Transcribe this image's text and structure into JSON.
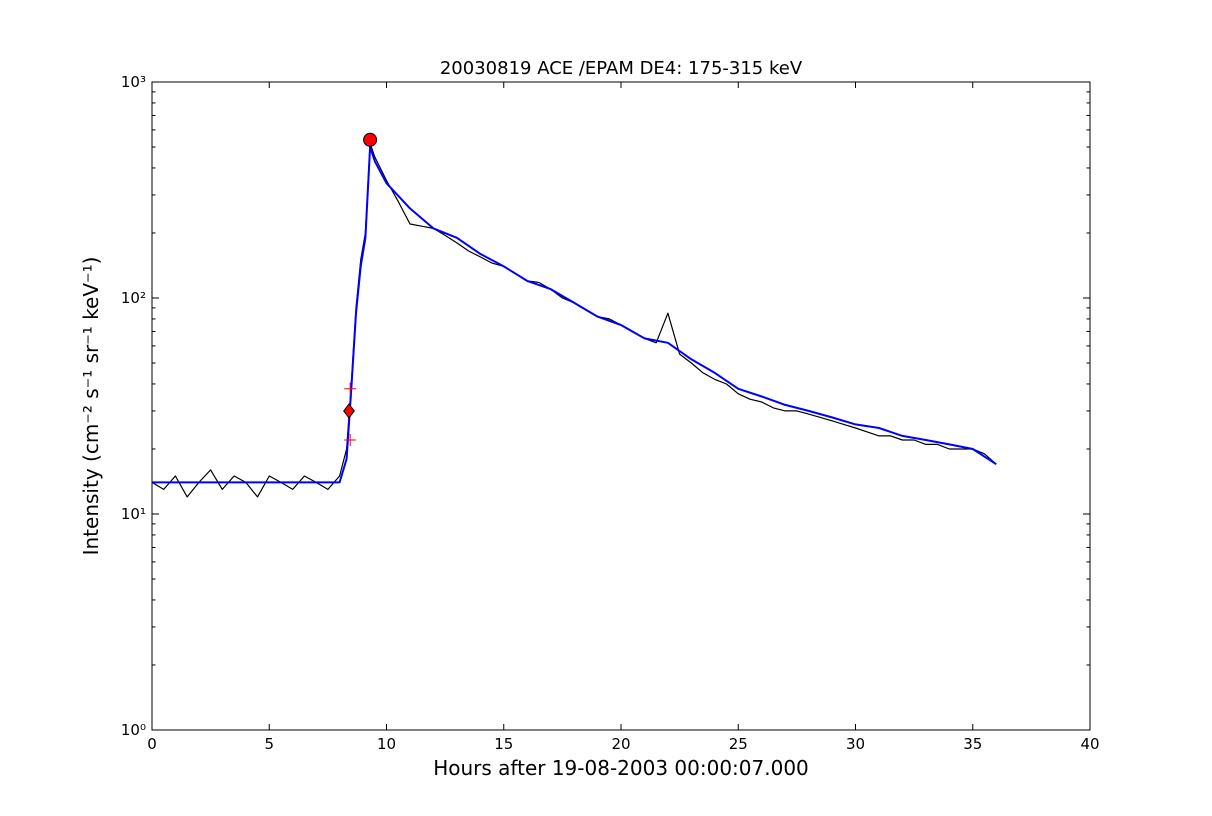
{
  "chart_data": {
    "type": "line",
    "title": "20030819 ACE /EPAM DE4: 175-315 keV",
    "xlabel": "Hours after 19-08-2003 00:00:07.000",
    "ylabel": "Intensity (cm⁻² s⁻¹ sr⁻¹ keV⁻¹)",
    "xlim": [
      0,
      40
    ],
    "ylim": [
      1,
      1000
    ],
    "y_scale": "log",
    "grid": false,
    "xticks": [
      {
        "value": 0,
        "label": "0"
      },
      {
        "value": 5,
        "label": "5"
      },
      {
        "value": 10,
        "label": "10"
      },
      {
        "value": 15,
        "label": "15"
      },
      {
        "value": 20,
        "label": "20"
      },
      {
        "value": 25,
        "label": "25"
      },
      {
        "value": 30,
        "label": "30"
      },
      {
        "value": 35,
        "label": "35"
      },
      {
        "value": 40,
        "label": "40"
      }
    ],
    "yticks": [
      {
        "value": 1,
        "label": "10⁰"
      },
      {
        "value": 10,
        "label": "10¹"
      },
      {
        "value": 100,
        "label": "10²"
      },
      {
        "value": 1000,
        "label": "10³"
      }
    ],
    "series": [
      {
        "color": "#000000",
        "x": [
          0,
          0.5,
          1,
          1.5,
          2,
          2.5,
          3,
          3.5,
          4,
          4.5,
          5,
          5.5,
          6,
          6.5,
          7,
          7.5,
          8,
          8.3,
          8.5,
          8.7,
          8.9,
          9.1,
          9.3,
          9.5,
          10,
          10.5,
          11,
          11.5,
          12,
          12.5,
          13,
          13.5,
          14,
          14.5,
          15,
          15.5,
          16,
          16.5,
          17,
          17.5,
          18,
          18.5,
          19,
          19.5,
          20,
          20.5,
          21,
          21.5,
          22,
          22.5,
          23,
          23.5,
          24,
          24.5,
          25,
          25.5,
          26,
          26.5,
          27,
          27.5,
          28,
          28.5,
          29,
          29.5,
          30,
          30.5,
          31,
          31.5,
          32,
          32.5,
          33,
          33.5,
          34,
          34.5,
          35,
          35.5,
          36
        ],
        "y": [
          14,
          13,
          15,
          12,
          14,
          16,
          13,
          15,
          14,
          12,
          15,
          14,
          13,
          15,
          14,
          13,
          15,
          20,
          40,
          90,
          150,
          200,
          520,
          450,
          350,
          280,
          220,
          215,
          210,
          195,
          180,
          165,
          155,
          145,
          140,
          130,
          120,
          118,
          110,
          100,
          95,
          88,
          82,
          80,
          75,
          70,
          65,
          62,
          85,
          55,
          50,
          45,
          42,
          40,
          36,
          34,
          33,
          31,
          30,
          30,
          29,
          28,
          27,
          26,
          25,
          24,
          23,
          23,
          22,
          22,
          21,
          21,
          20,
          20,
          20,
          19,
          17
        ]
      },
      {
        "color": "#0000ff",
        "x": [
          0,
          1,
          2,
          3,
          4,
          5,
          6,
          7,
          8,
          8.3,
          8.5,
          8.7,
          8.9,
          9.1,
          9.3,
          9.5,
          10,
          11,
          12,
          13,
          14,
          15,
          16,
          17,
          18,
          19,
          20,
          21,
          22,
          23,
          24,
          25,
          26,
          27,
          28,
          29,
          30,
          31,
          32,
          33,
          34,
          35,
          36
        ],
        "y": [
          14,
          14,
          14,
          14,
          14,
          14,
          14,
          14,
          14,
          18,
          38,
          85,
          140,
          190,
          500,
          430,
          340,
          260,
          210,
          190,
          160,
          140,
          120,
          110,
          95,
          82,
          75,
          65,
          62,
          52,
          45,
          38,
          35,
          32,
          30,
          28,
          26,
          25,
          23,
          22,
          21,
          20,
          17
        ]
      }
    ],
    "markers": [
      {
        "shape": "circle",
        "x": 9.3,
        "y": 540,
        "color": "#ff0000"
      },
      {
        "shape": "diamond",
        "x": 8.4,
        "y": 30,
        "color": "#ff0000"
      },
      {
        "shape": "plus",
        "x": 8.45,
        "y": 38,
        "color": "#ff0000"
      },
      {
        "shape": "plus",
        "x": 8.45,
        "y": 22,
        "color": "#ff0000"
      }
    ]
  }
}
